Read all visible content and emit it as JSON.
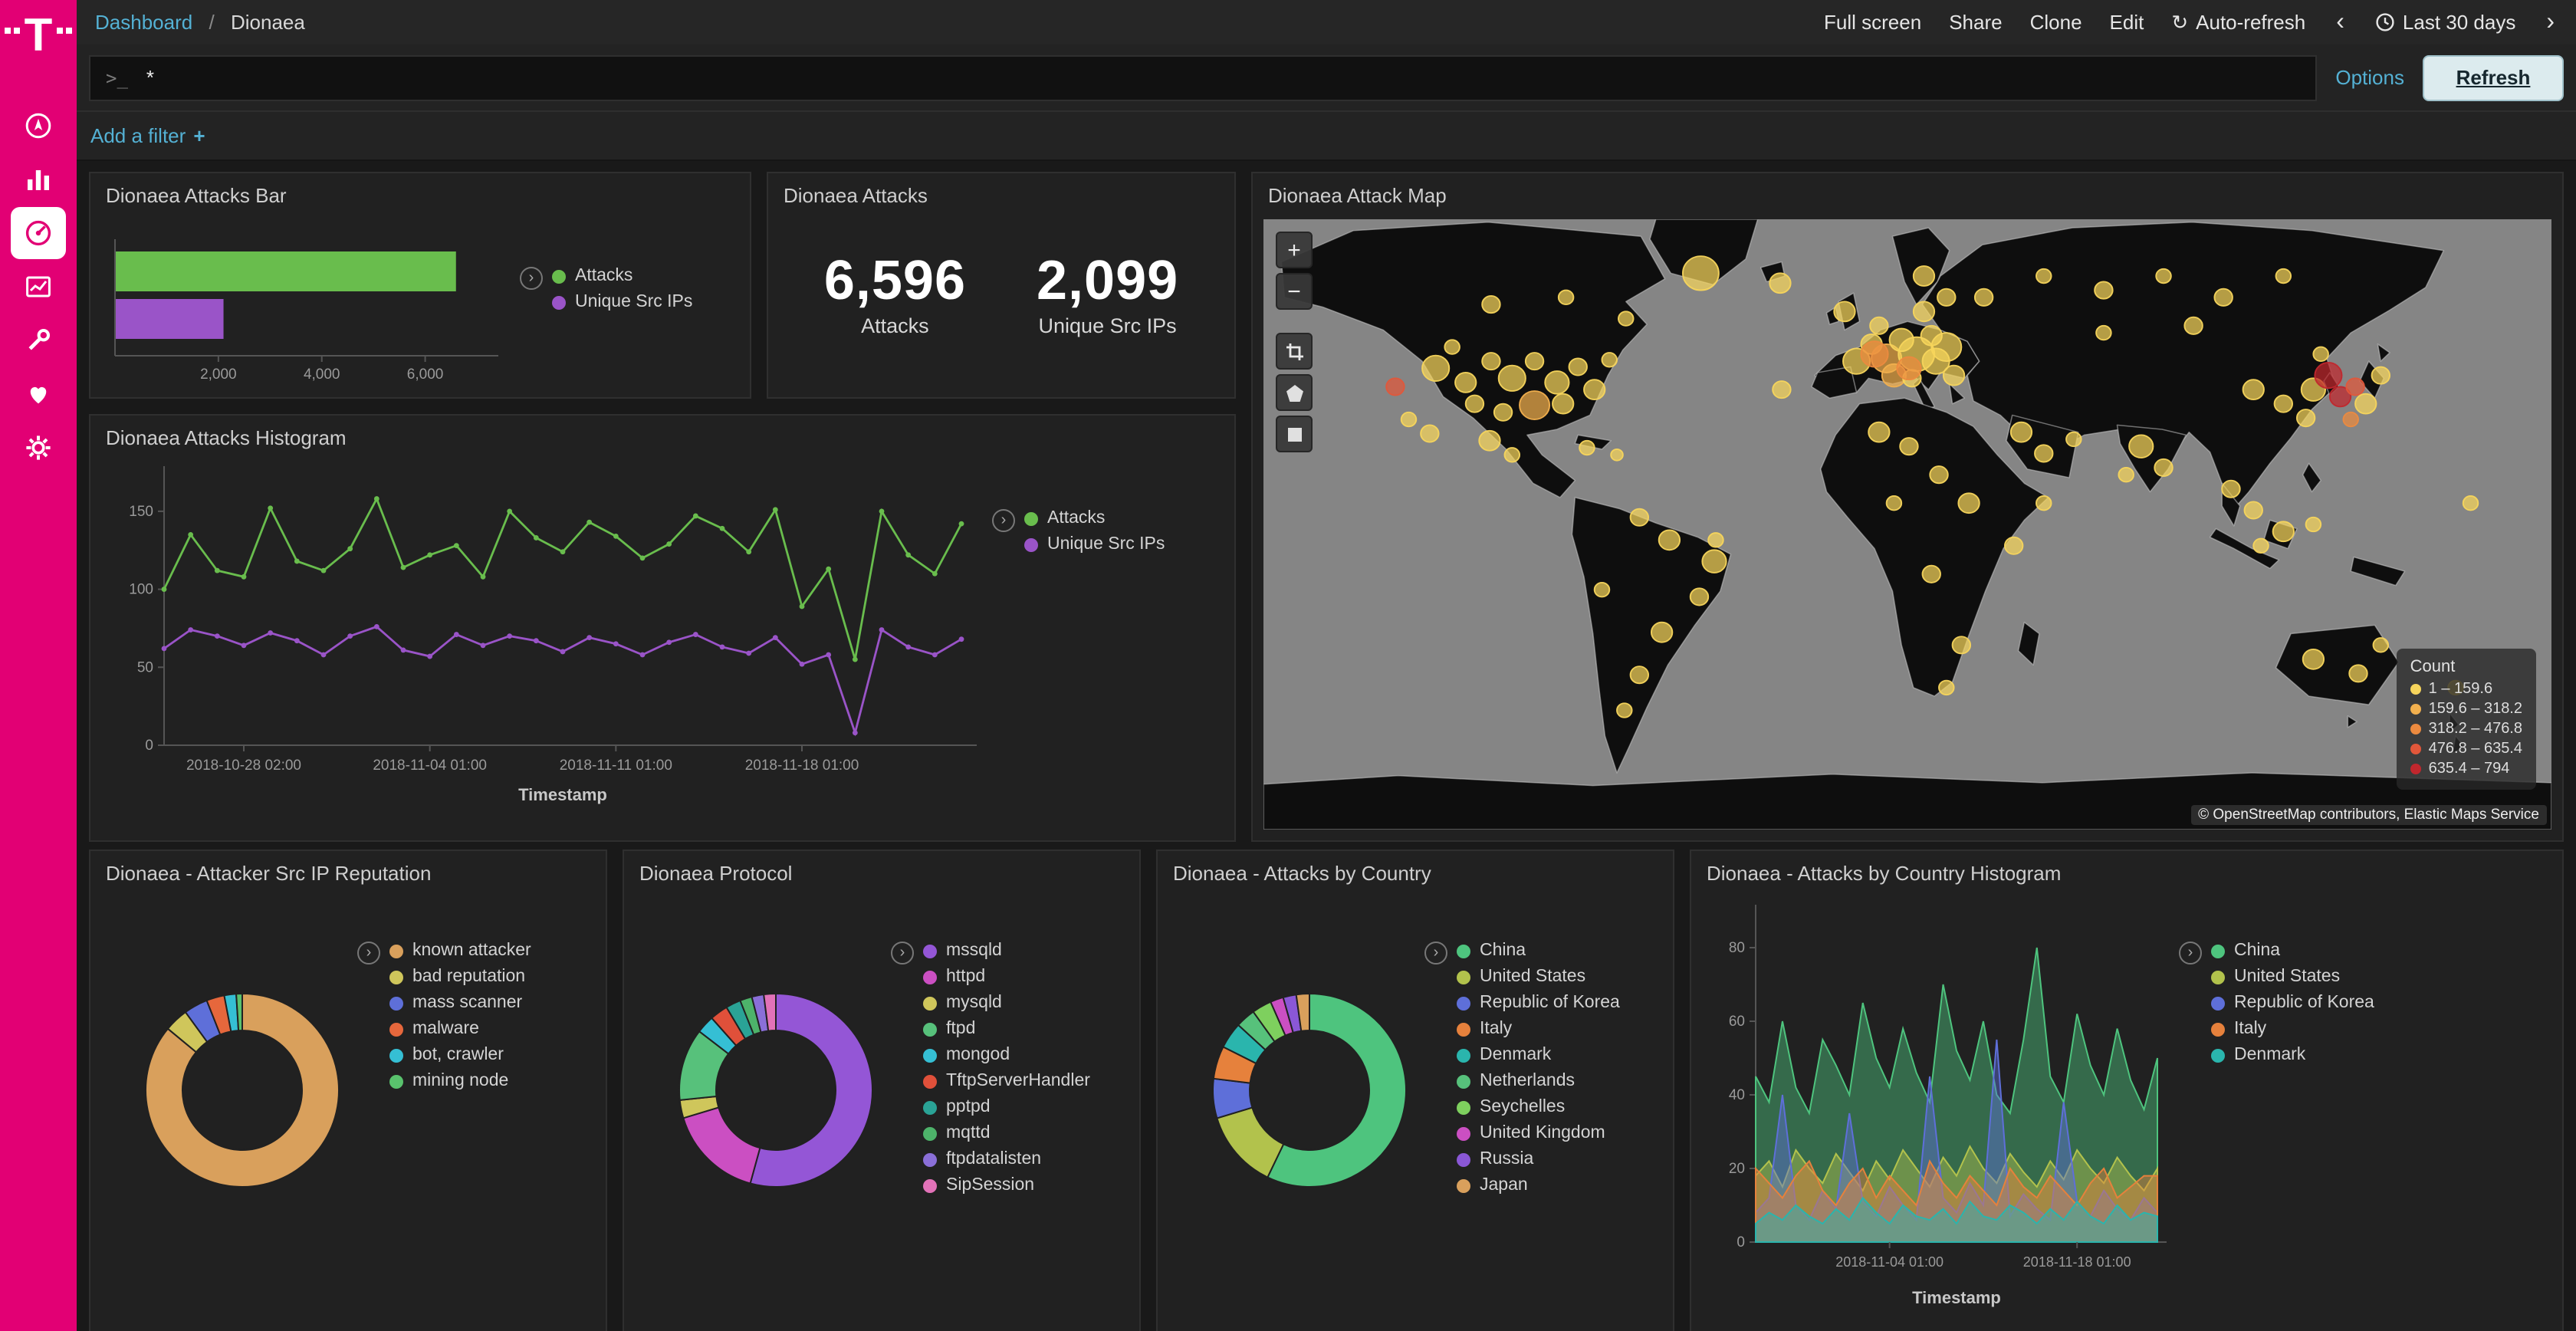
{
  "colors": {
    "brand": "#e20074",
    "link": "#54b1d4",
    "panel_bg": "#212121",
    "page_bg": "#191919",
    "attacks_green": "#69bd4d",
    "srcips_purple": "#9a54c8"
  },
  "icons": {
    "chevron_left": "‹",
    "chevron_right": "›",
    "legend_toggle": "›",
    "auto_refresh": "↻",
    "zoom_in": "+",
    "zoom_out": "−",
    "plus": "+"
  },
  "sidebar": {
    "logo_letter": "T"
  },
  "topbar": {
    "breadcrumb_link": "Dashboard",
    "breadcrumb_sep": "/",
    "breadcrumb_current": "Dionaea",
    "actions": [
      "Full screen",
      "Share",
      "Clone",
      "Edit"
    ],
    "auto_refresh": "Auto-refresh",
    "time_range": "Last 30 days"
  },
  "query": {
    "prompt": ">_",
    "value": "*",
    "options": "Options",
    "refresh": "Refresh"
  },
  "filters": {
    "add_label": "Add a filter"
  },
  "chart_data": [
    {
      "type": "bar",
      "title": "Dionaea Attacks Bar",
      "orientation": "horizontal",
      "categories": [
        "Attacks",
        "Unique Src IPs"
      ],
      "values": [
        6596,
        2099
      ],
      "colors": [
        "#69bd4d",
        "#9a54c8"
      ],
      "xlim": [
        0,
        7000
      ],
      "xticks": [
        2000,
        4000,
        6000
      ],
      "xtick_labels": [
        "2,000",
        "4,000",
        "6,000"
      ],
      "legend": [
        {
          "label": "Attacks",
          "color": "#69bd4d"
        },
        {
          "label": "Unique Src IPs",
          "color": "#9a54c8"
        }
      ]
    },
    {
      "type": "metric",
      "title": "Dionaea Attacks",
      "metrics": [
        {
          "value": "6,596",
          "label": "Attacks"
        },
        {
          "value": "2,099",
          "label": "Unique Src IPs"
        }
      ]
    },
    {
      "type": "map",
      "title": "Dionaea Attack Map",
      "legend_title": "Count",
      "attribution": "© OpenStreetMap contributors, Elastic Maps Service",
      "legend": [
        {
          "label": "1 – 159.6",
          "color": "#f7d55c"
        },
        {
          "label": "159.6 – 318.2",
          "color": "#f2b04e"
        },
        {
          "label": "318.2 – 476.8",
          "color": "#ec8a3f"
        },
        {
          "label": "476.8 – 635.4",
          "color": "#e2573a"
        },
        {
          "label": "635.4 – 794",
          "color": "#c1272d"
        }
      ],
      "points": [
        [
          115,
          105,
          9,
          0
        ],
        [
          135,
          115,
          7,
          0
        ],
        [
          152,
          100,
          6,
          0
        ],
        [
          166,
          112,
          9,
          0
        ],
        [
          181,
          100,
          6,
          0
        ],
        [
          196,
          115,
          8,
          0
        ],
        [
          210,
          104,
          6,
          0
        ],
        [
          200,
          130,
          7,
          0
        ],
        [
          181,
          131,
          10,
          1
        ],
        [
          160,
          136,
          6,
          0
        ],
        [
          221,
          120,
          7,
          0
        ],
        [
          231,
          99,
          5,
          0
        ],
        [
          141,
          130,
          6,
          0
        ],
        [
          126,
          90,
          5,
          0
        ],
        [
          88,
          118,
          6,
          3
        ],
        [
          97,
          141,
          5,
          0
        ],
        [
          111,
          151,
          6,
          0
        ],
        [
          151,
          156,
          7,
          0
        ],
        [
          166,
          166,
          5,
          0
        ],
        [
          216,
          161,
          5,
          0
        ],
        [
          236,
          166,
          4,
          0
        ],
        [
          152,
          60,
          6,
          0
        ],
        [
          202,
          55,
          5,
          0
        ],
        [
          242,
          70,
          5,
          0
        ],
        [
          292,
          38,
          12,
          0
        ],
        [
          345,
          45,
          7,
          0
        ],
        [
          251,
          210,
          6,
          0
        ],
        [
          271,
          226,
          7,
          0
        ],
        [
          301,
          241,
          8,
          0
        ],
        [
          291,
          266,
          6,
          0
        ],
        [
          266,
          291,
          7,
          0
        ],
        [
          251,
          321,
          6,
          0
        ],
        [
          241,
          346,
          5,
          0
        ],
        [
          226,
          261,
          5,
          0
        ],
        [
          302,
          226,
          5,
          0
        ],
        [
          388,
          65,
          7,
          0
        ],
        [
          396,
          100,
          9,
          0
        ],
        [
          406,
          88,
          7,
          0
        ],
        [
          416,
          98,
          10,
          1
        ],
        [
          426,
          85,
          8,
          0
        ],
        [
          436,
          95,
          12,
          0
        ],
        [
          446,
          82,
          7,
          0
        ],
        [
          421,
          110,
          8,
          1
        ],
        [
          433,
          112,
          6,
          0
        ],
        [
          449,
          100,
          9,
          0
        ],
        [
          411,
          75,
          6,
          0
        ],
        [
          441,
          65,
          7,
          0
        ],
        [
          456,
          90,
          10,
          0
        ],
        [
          461,
          110,
          7,
          0
        ],
        [
          408,
          95,
          9,
          2
        ],
        [
          431,
          105,
          8,
          2
        ],
        [
          441,
          40,
          7,
          0
        ],
        [
          456,
          55,
          6,
          0
        ],
        [
          411,
          150,
          7,
          0
        ],
        [
          431,
          160,
          6,
          0
        ],
        [
          451,
          180,
          6,
          0
        ],
        [
          471,
          200,
          7,
          0
        ],
        [
          421,
          200,
          5,
          0
        ],
        [
          446,
          250,
          6,
          0
        ],
        [
          466,
          300,
          6,
          0
        ],
        [
          456,
          330,
          5,
          0
        ],
        [
          501,
          230,
          6,
          0
        ],
        [
          521,
          200,
          5,
          0
        ],
        [
          506,
          150,
          7,
          0
        ],
        [
          521,
          165,
          6,
          0
        ],
        [
          541,
          155,
          5,
          0
        ],
        [
          481,
          55,
          6,
          0
        ],
        [
          521,
          40,
          5,
          0
        ],
        [
          561,
          50,
          6,
          0
        ],
        [
          601,
          40,
          5,
          0
        ],
        [
          641,
          55,
          6,
          0
        ],
        [
          681,
          40,
          5,
          0
        ],
        [
          561,
          80,
          5,
          0
        ],
        [
          621,
          75,
          6,
          0
        ],
        [
          586,
          160,
          8,
          0
        ],
        [
          601,
          175,
          6,
          0
        ],
        [
          576,
          180,
          5,
          0
        ],
        [
          646,
          190,
          6,
          0
        ],
        [
          661,
          205,
          6,
          0
        ],
        [
          681,
          220,
          7,
          0
        ],
        [
          701,
          215,
          5,
          0
        ],
        [
          666,
          230,
          5,
          0
        ],
        [
          661,
          120,
          7,
          0
        ],
        [
          681,
          130,
          6,
          0
        ],
        [
          701,
          120,
          8,
          0
        ],
        [
          696,
          140,
          6,
          0
        ],
        [
          711,
          110,
          9,
          4
        ],
        [
          719,
          125,
          7,
          4
        ],
        [
          729,
          118,
          6,
          3
        ],
        [
          736,
          130,
          7,
          0
        ],
        [
          726,
          141,
          5,
          2
        ],
        [
          746,
          110,
          6,
          0
        ],
        [
          706,
          95,
          5,
          0
        ],
        [
          701,
          310,
          7,
          0
        ],
        [
          731,
          320,
          6,
          0
        ],
        [
          746,
          300,
          5,
          0
        ],
        [
          796,
          330,
          5,
          0
        ],
        [
          806,
          200,
          5,
          0
        ],
        [
          346,
          120,
          6,
          0
        ]
      ]
    },
    {
      "type": "line",
      "title": "Dionaea Attacks Histogram",
      "xlabel": "Timestamp",
      "ylim": [
        0,
        175
      ],
      "yticks": [
        0,
        50,
        100,
        150
      ],
      "x_tick_indices": [
        3,
        10,
        17,
        24
      ],
      "x_tick_labels": [
        "2018-10-28 02:00",
        "2018-11-04 01:00",
        "2018-11-11 01:00",
        "2018-11-18 01:00"
      ],
      "series": [
        {
          "name": "Attacks",
          "color": "#69bd4d",
          "values": [
            100,
            135,
            112,
            108,
            152,
            118,
            112,
            126,
            158,
            114,
            122,
            128,
            108,
            150,
            133,
            124,
            143,
            134,
            120,
            129,
            147,
            139,
            124,
            151,
            89,
            113,
            55,
            150,
            122,
            110,
            142
          ]
        },
        {
          "name": "Unique Src IPs",
          "color": "#9a54c8",
          "values": [
            62,
            74,
            70,
            64,
            72,
            67,
            58,
            70,
            76,
            61,
            57,
            71,
            64,
            70,
            67,
            60,
            69,
            65,
            58,
            66,
            71,
            63,
            59,
            69,
            52,
            58,
            8,
            74,
            63,
            58,
            68
          ]
        }
      ]
    },
    {
      "type": "donut",
      "title": "Dionaea - Attacker Src IP Reputation",
      "slices": [
        {
          "label": "known attacker",
          "value": 86,
          "color": "#d9a05c"
        },
        {
          "label": "bad reputation",
          "value": 4,
          "color": "#cfc65b"
        },
        {
          "label": "mass scanner",
          "value": 4,
          "color": "#5e6fd9"
        },
        {
          "label": "malware",
          "value": 3,
          "color": "#e6673c"
        },
        {
          "label": "bot, crawler",
          "value": 2,
          "color": "#35bfd4"
        },
        {
          "label": "mining node",
          "value": 1,
          "color": "#59c26d"
        }
      ]
    },
    {
      "type": "donut",
      "title": "Dionaea Protocol",
      "slices": [
        {
          "label": "mssqld",
          "value": 54,
          "color": "#9456d6"
        },
        {
          "label": "httpd",
          "value": 16,
          "color": "#cb4fc2"
        },
        {
          "label": "mysqld",
          "value": 3,
          "color": "#cfc65b"
        },
        {
          "label": "ftpd",
          "value": 12,
          "color": "#57c17b"
        },
        {
          "label": "mongod",
          "value": 3,
          "color": "#35bfd4"
        },
        {
          "label": "TftpServerHandler",
          "value": 3,
          "color": "#e0503a"
        },
        {
          "label": "pptpd",
          "value": 2.5,
          "color": "#2aa396"
        },
        {
          "label": "mqttd",
          "value": 2,
          "color": "#4db36a"
        },
        {
          "label": "ftpdatalisten",
          "value": 2,
          "color": "#8a6fd8"
        },
        {
          "label": "SipSession",
          "value": 2,
          "color": "#e272b8"
        }
      ]
    },
    {
      "type": "donut",
      "title": "Dionaea - Attacks by Country",
      "slices": [
        {
          "label": "China",
          "value": 52,
          "color": "#4ec47e"
        },
        {
          "label": "United States",
          "value": 12,
          "color": "#b2c24c"
        },
        {
          "label": "Republic of Korea",
          "value": 6,
          "color": "#5e6fd9"
        },
        {
          "label": "Italy",
          "value": 5,
          "color": "#e6813c"
        },
        {
          "label": "Denmark",
          "value": 4,
          "color": "#2ab5ad"
        },
        {
          "label": "Netherlands",
          "value": 3,
          "color": "#57c17b"
        },
        {
          "label": "Seychelles",
          "value": 3,
          "color": "#7ed05e"
        },
        {
          "label": "United Kingdom",
          "value": 2,
          "color": "#cb4fc2"
        },
        {
          "label": "Russia",
          "value": 2,
          "color": "#8a57d6"
        },
        {
          "label": "Japan",
          "value": 2,
          "color": "#d9a05c"
        }
      ]
    },
    {
      "type": "area",
      "title": "Dionaea - Attacks by Country Histogram",
      "xlabel": "Timestamp",
      "ylim": [
        0,
        90
      ],
      "yticks": [
        0,
        20,
        40,
        60,
        80
      ],
      "x_tick_indices": [
        10,
        24
      ],
      "x_tick_labels": [
        "2018-11-04 01:00",
        "2018-11-18 01:00"
      ],
      "series": [
        {
          "name": "China",
          "color": "#4ec47e",
          "values": [
            45,
            38,
            60,
            42,
            35,
            55,
            48,
            40,
            65,
            50,
            42,
            58,
            46,
            38,
            70,
            52,
            44,
            60,
            40,
            35,
            55,
            80,
            45,
            38,
            62,
            48,
            40,
            58,
            44,
            36,
            50
          ]
        },
        {
          "name": "United States",
          "color": "#b2c24c",
          "values": [
            18,
            22,
            15,
            25,
            20,
            16,
            24,
            19,
            14,
            22,
            17,
            25,
            20,
            15,
            23,
            18,
            26,
            20,
            16,
            24,
            19,
            15,
            22,
            17,
            25,
            20,
            16,
            23,
            18,
            14,
            20
          ]
        },
        {
          "name": "Republic of Korea",
          "color": "#5e6fd9",
          "values": [
            8,
            12,
            40,
            10,
            6,
            14,
            9,
            35,
            11,
            7,
            15,
            10,
            6,
            45,
            12,
            8,
            16,
            10,
            55,
            7,
            13,
            9,
            6,
            38,
            11,
            7,
            14,
            9,
            6,
            12,
            8
          ]
        },
        {
          "name": "Italy",
          "color": "#e6813c",
          "values": [
            20,
            16,
            12,
            18,
            22,
            14,
            10,
            16,
            20,
            12,
            18,
            14,
            10,
            22,
            16,
            12,
            18,
            14,
            10,
            20,
            15,
            12,
            18,
            14,
            10,
            16,
            20,
            12,
            15,
            18,
            18
          ]
        },
        {
          "name": "Denmark",
          "color": "#2ab5ad",
          "values": [
            5,
            8,
            6,
            10,
            7,
            5,
            9,
            6,
            12,
            8,
            5,
            10,
            7,
            6,
            9,
            5,
            11,
            7,
            6,
            10,
            8,
            5,
            9,
            6,
            11,
            7,
            5,
            10,
            6,
            8,
            7
          ]
        }
      ]
    }
  ]
}
